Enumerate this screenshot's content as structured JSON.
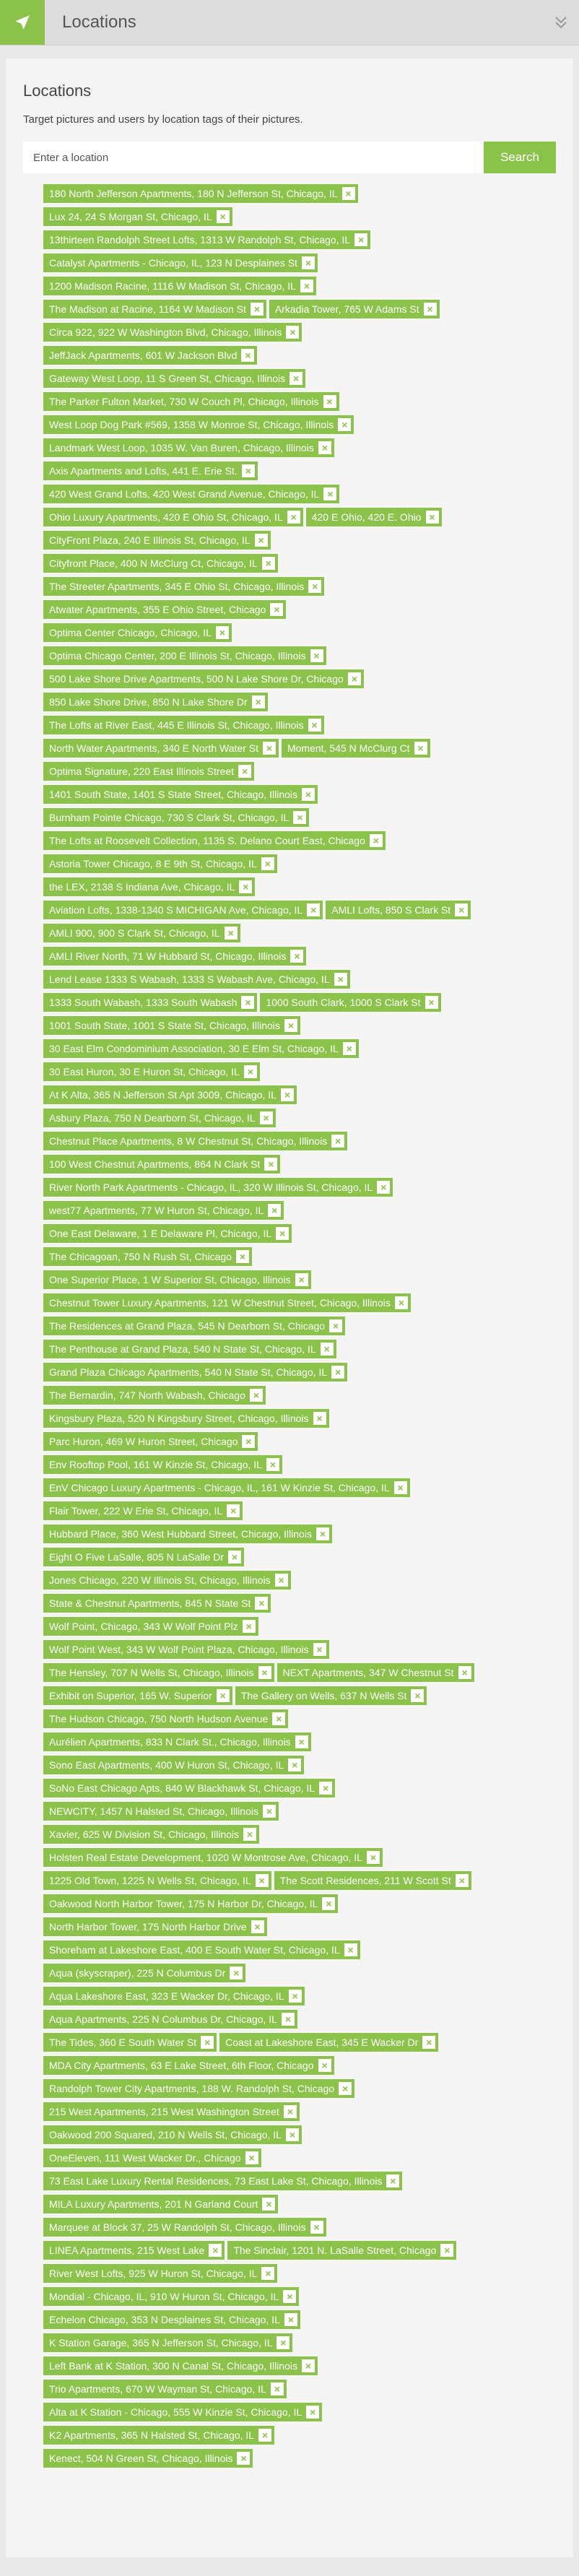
{
  "header": {
    "icon": "location-arrow-icon",
    "title": "Locations",
    "collapse_icon": "double-chevron-down-icon"
  },
  "section": {
    "title": "Locations",
    "description": "Target pictures and users by location tags of their pictures."
  },
  "search": {
    "placeholder": "Enter a location",
    "value": "",
    "button_label": "Search"
  },
  "colors": {
    "accent": "#8bc34a",
    "tag_text": "#ffffff"
  },
  "tags": [
    [
      {
        "label": "180 North Jefferson Apartments, 180 N Jefferson St, Chicago, IL"
      }
    ],
    [
      {
        "label": "Lux 24, 24 S Morgan St, Chicago, IL"
      }
    ],
    [
      {
        "label": "13thirteen Randolph Street Lofts, 1313 W Randolph St, Chicago, IL"
      }
    ],
    [
      {
        "label": "Catalyst Apartments - Chicago, IL, 123 N Desplaines St"
      }
    ],
    [
      {
        "label": "1200 Madison Racine, 1116 W Madison St, Chicago, IL"
      }
    ],
    [
      {
        "label": "The Madison at Racine, 1164 W Madison St"
      },
      {
        "label": "Arkadia Tower, 765 W Adams St"
      }
    ],
    [
      {
        "label": "Circa 922, 922 W Washington Blvd, Chicago, Illinois"
      }
    ],
    [
      {
        "label": "JeffJack Apartments, 601 W Jackson Blvd"
      }
    ],
    [
      {
        "label": "Gateway West Loop, 11 S Green St, Chicago, Illinois"
      }
    ],
    [
      {
        "label": "The Parker Fulton Market, 730 W Couch Pl, Chicago, Illinois"
      }
    ],
    [
      {
        "label": "West Loop Dog Park #569, 1358 W Monroe St, Chicago, Illinois"
      }
    ],
    [
      {
        "label": "Landmark West Loop, 1035 W. Van Buren, Chicago, Illinois"
      }
    ],
    [
      {
        "label": "Axis Apartments and Lofts, 441 E. Erie St."
      }
    ],
    [
      {
        "label": "420 West Grand Lofts, 420 West Grand Avenue, Chicago, IL"
      }
    ],
    [
      {
        "label": "Ohio Luxury Apartments, 420 E Ohio St, Chicago, IL"
      },
      {
        "label": "420 E Ohio, 420 E. Ohio"
      }
    ],
    [
      {
        "label": "CityFront Plaza, 240 E Illinois St, Chicago, IL"
      }
    ],
    [
      {
        "label": "Cityfront Place, 400 N McClurg Ct, Chicago, IL"
      }
    ],
    [
      {
        "label": "The Streeter Apartments, 345 E Ohio St, Chicago, Illinois"
      }
    ],
    [
      {
        "label": "Atwater Apartments, 355 E Ohio Street, Chicago"
      }
    ],
    [
      {
        "label": "Optima Center Chicago, Chicago, IL"
      }
    ],
    [
      {
        "label": "Optima Chicago Center, 200 E Illinois St, Chicago, Illinois"
      }
    ],
    [
      {
        "label": "500 Lake Shore Drive Apartments, 500 N Lake Shore Dr, Chicago"
      }
    ],
    [
      {
        "label": "850 Lake Shore Drive, 850 N Lake Shore Dr"
      }
    ],
    [
      {
        "label": "The Lofts at River East, 445 E Illinois St, Chicago, Illinois"
      }
    ],
    [
      {
        "label": "North Water Apartments, 340 E North Water St"
      },
      {
        "label": "Moment, 545 N McClurg Ct"
      }
    ],
    [
      {
        "label": "Optima Signature, 220 East Illinois Street"
      }
    ],
    [
      {
        "label": "1401 South State, 1401 S State Street, Chicago, Illinois"
      }
    ],
    [
      {
        "label": "Burnham Pointe Chicago, 730 S Clark St, Chicago, IL"
      }
    ],
    [
      {
        "label": "The Lofts at Roosevelt Collection, 1135 S. Delano Court East, Chicago"
      }
    ],
    [
      {
        "label": "Astoria Tower Chicago, 8 E 9th St, Chicago, IL"
      }
    ],
    [
      {
        "label": "the LEX, 2138 S Indiana Ave, Chicago, IL"
      }
    ],
    [
      {
        "label": "Aviation Lofts, 1338-1340 S MICHIGAN Ave, Chicago, IL"
      },
      {
        "label": "AMLI Lofts, 850 S Clark St"
      }
    ],
    [
      {
        "label": "AMLI 900, 900 S Clark St, Chicago, IL"
      }
    ],
    [
      {
        "label": "AMLI River North, 71 W Hubbard St, Chicago, Illinois"
      }
    ],
    [
      {
        "label": "Lend Lease 1333 S Wabash, 1333 S Wabash Ave, Chicago, IL"
      }
    ],
    [
      {
        "label": "1333 South Wabash, 1333 South Wabash"
      },
      {
        "label": "1000 South Clark, 1000 S Clark St"
      }
    ],
    [
      {
        "label": "1001 South State, 1001 S State St, Chicago, Illinois"
      }
    ],
    [
      {
        "label": "30 East Elm Condominium Association, 30 E Elm St, Chicago, IL"
      }
    ],
    [
      {
        "label": "30 East Huron, 30 E Huron St, Chicago, IL"
      }
    ],
    [
      {
        "label": "At K Alta, 365 N Jefferson St Apt 3009, Chicago, IL"
      }
    ],
    [
      {
        "label": "Asbury Plaza, 750 N Dearborn St, Chicago, IL"
      }
    ],
    [
      {
        "label": "Chestnut Place Apartments, 8 W Chestnut St, Chicago, Illinois"
      }
    ],
    [
      {
        "label": "100 West Chestnut Apartments, 864 N Clark St"
      }
    ],
    [
      {
        "label": "River North Park Apartments - Chicago, IL, 320 W Illinois St, Chicago, IL"
      }
    ],
    [
      {
        "label": "west77 Apartments, 77 W Huron St, Chicago, IL"
      }
    ],
    [
      {
        "label": "One East Delaware, 1 E Delaware Pl, Chicago, IL"
      }
    ],
    [
      {
        "label": "The Chicagoan, 750 N Rush St, Chicago"
      }
    ],
    [
      {
        "label": "One Superior Place, 1 W Superior St, Chicago, Illinois"
      }
    ],
    [
      {
        "label": "Chestnut Tower Luxury Apartments, 121 W Chestnut Street, Chicago, Illinois"
      }
    ],
    [
      {
        "label": "The Residences at Grand Plaza, 545 N Dearborn St, Chicago"
      }
    ],
    [
      {
        "label": "The Penthouse at Grand Plaza, 540 N State St, Chicago, IL"
      }
    ],
    [
      {
        "label": "Grand Plaza Chicago Apartments, 540 N State St, Chicago, IL"
      }
    ],
    [
      {
        "label": "The Bernardin, 747 North Wabash, Chicago"
      }
    ],
    [
      {
        "label": "Kingsbury Plaza, 520 N Kingsbury Street, Chicago, Illinois"
      }
    ],
    [
      {
        "label": "Parc Huron, 469 W Huron Street, Chicago"
      }
    ],
    [
      {
        "label": "Env Rooftop Pool, 161 W Kinzie St, Chicago, IL"
      }
    ],
    [
      {
        "label": "EnV Chicago Luxury Apartments - Chicago, IL, 161 W Kinzie St, Chicago, IL"
      }
    ],
    [
      {
        "label": "Flair Tower, 222 W Erie St, Chicago, IL"
      }
    ],
    [
      {
        "label": "Hubbard Place, 360 West Hubbard Street, Chicago, Illinois"
      }
    ],
    [
      {
        "label": "Eight O Five LaSalle, 805 N LaSalle Dr"
      }
    ],
    [
      {
        "label": "Jones Chicago, 220 W Illinois St, Chicago, Illinois"
      }
    ],
    [
      {
        "label": "State & Chestnut Apartments, 845 N State St"
      }
    ],
    [
      {
        "label": "Wolf Point, Chicago, 343 W Wolf Point Plz"
      }
    ],
    [
      {
        "label": "Wolf Point West, 343 W Wolf Point Plaza, Chicago, Illinois"
      }
    ],
    [
      {
        "label": "The Hensley, 707 N Wells St, Chicago, Illinois"
      },
      {
        "label": "NEXT Apartments, 347 W Chestnut St"
      }
    ],
    [
      {
        "label": "Exhibit on Superior, 165 W. Superior"
      },
      {
        "label": "The Gallery on Wells, 637 N Wells St"
      }
    ],
    [
      {
        "label": "The Hudson Chicago, 750 North Hudson Avenue"
      }
    ],
    [
      {
        "label": "Aurélien Apartments, 833 N Clark St., Chicago, Illinois"
      }
    ],
    [
      {
        "label": "Sono East Apartments, 400 W Huron St, Chicago, IL"
      }
    ],
    [
      {
        "label": "SoNo East Chicago Apts, 840 W Blackhawk St, Chicago, IL"
      }
    ],
    [
      {
        "label": "NEWCITY, 1457 N Halsted St, Chicago, Illinois"
      }
    ],
    [
      {
        "label": "Xavier, 625 W Division St, Chicago, Illinois"
      }
    ],
    [
      {
        "label": "Holsten Real Estate Development, 1020 W Montrose Ave, Chicago, IL"
      }
    ],
    [
      {
        "label": "1225 Old Town, 1225 N Wells St, Chicago, IL"
      },
      {
        "label": "The Scott Residences, 211 W Scott St"
      }
    ],
    [
      {
        "label": "Oakwood North Harbor Tower, 175 N Harbor Dr, Chicago, IL"
      }
    ],
    [
      {
        "label": "North Harbor Tower, 175 North Harbor Drive"
      }
    ],
    [
      {
        "label": "Shoreham at Lakeshore East, 400 E South Water St, Chicago, IL"
      }
    ],
    [
      {
        "label": "Aqua (skyscraper), 225 N Columbus Dr"
      }
    ],
    [
      {
        "label": "Aqua Lakeshore East, 323 E Wacker Dr, Chicago, IL"
      }
    ],
    [
      {
        "label": "Aqua Apartments, 225 N Columbus Dr, Chicago, IL"
      }
    ],
    [
      {
        "label": "The Tides, 360 E South Water St"
      },
      {
        "label": "Coast at Lakeshore East, 345 E Wacker Dr"
      }
    ],
    [
      {
        "label": "MDA City Apartments, 63 E Lake Street, 6th Floor, Chicago"
      }
    ],
    [
      {
        "label": "Randolph Tower City Apartments, 188 W. Randolph St, Chicago"
      }
    ],
    [
      {
        "label": "215 West Apartments, 215 West Washington Street"
      }
    ],
    [
      {
        "label": "Oakwood 200 Squared, 210 N Wells St, Chicago, IL"
      }
    ],
    [
      {
        "label": "OneEleven, 111 West Wacker Dr., Chicago"
      }
    ],
    [
      {
        "label": "73 East Lake Luxury Rental Residences, 73 East Lake St, Chicago, Illinois"
      }
    ],
    [
      {
        "label": "MILA Luxury Apartments, 201 N Garland Court"
      }
    ],
    [
      {
        "label": "Marquee at Block 37, 25 W Randolph St, Chicago, Illinois"
      }
    ],
    [
      {
        "label": "LINEA Apartments, 215 West Lake"
      },
      {
        "label": "The Sinclair, 1201 N. LaSalle Street, Chicago"
      }
    ],
    [
      {
        "label": "River West Lofts, 925 W Huron St, Chicago, IL"
      }
    ],
    [
      {
        "label": "Mondial - Chicago, IL, 910 W Huron St, Chicago, IL"
      }
    ],
    [
      {
        "label": "Echelon Chicago, 353 N Desplaines St, Chicago, IL"
      }
    ],
    [
      {
        "label": "K Station Garage, 365 N Jefferson St, Chicago, IL"
      }
    ],
    [
      {
        "label": "Left Bank at K Station, 300 N Canal St, Chicago, Illinois"
      }
    ],
    [
      {
        "label": "Trio Apartments, 670 W Wayman St, Chicago, IL"
      }
    ],
    [
      {
        "label": "Alta at K Station - Chicago, 555 W Kinzie St, Chicago, IL"
      }
    ],
    [
      {
        "label": "K2 Apartments, 365 N Halsted St, Chicago, IL"
      }
    ],
    [
      {
        "label": "Kenect, 504 N Green St, Chicago, Illinois"
      }
    ]
  ],
  "tag_remove_symbol": "×"
}
